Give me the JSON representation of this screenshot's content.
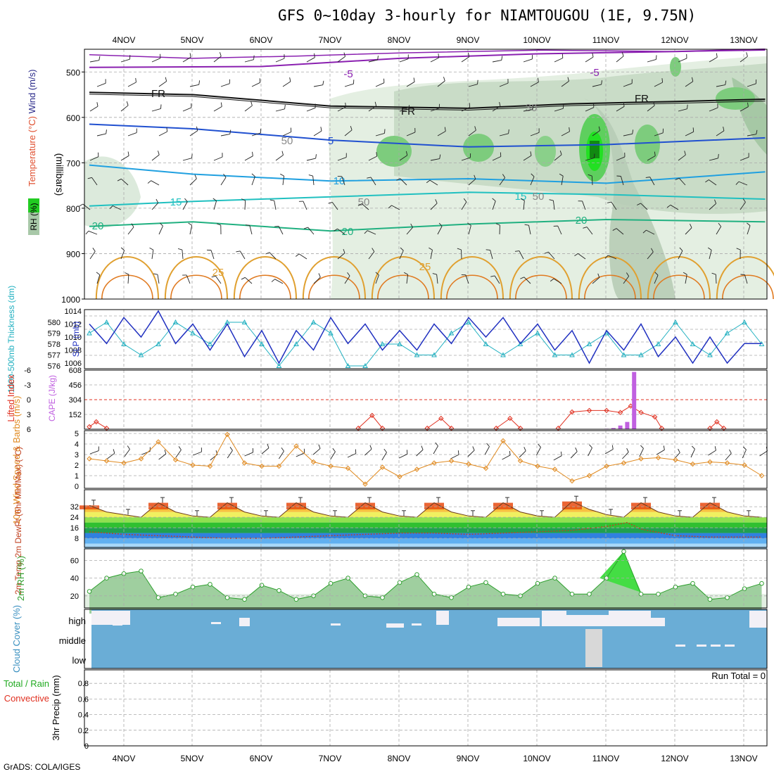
{
  "title": "GFS 0~10day 3-hourly for NIAMTOUGOU (1E, 9.75N)",
  "footer": "GrADS: COLA/IGES",
  "run_total": "Run Total = 0",
  "x_ticks": [
    "4NOV",
    "5NOV",
    "6NOV",
    "7NOV",
    "8NOV",
    "9NOV",
    "10NOV",
    "11NOV",
    "12NOV",
    "13NOV"
  ],
  "colors": {
    "temp_label": "#e05030",
    "wind_label": "#2a2a8a",
    "rh_label": "#22aa22",
    "slp": "#2030c0",
    "thickness": "#20b0c0",
    "cape": "#c060e0",
    "lifted": "#e03020",
    "wind10": "#e08a20",
    "dewpt": "#c04020",
    "rh2m": "#30a030",
    "cloud": "#6aadd6",
    "rain": "#20aa20",
    "conv": "#e03020"
  },
  "chart_data": [
    {
      "type": "heatmap",
      "panel": "pressure-levels",
      "ylabel": "(millibars)",
      "ylabel_wind": "Wind (m/s)",
      "ylabel_temp": "Temperature (°C)",
      "ylabel_rh": "RH (%)",
      "y_ticks": [
        500,
        600,
        700,
        800,
        900,
        1000
      ],
      "ylim": [
        450,
        1000
      ],
      "contour_labels": [
        "-5",
        "-5",
        "FR",
        "FR",
        "FR",
        "5",
        "10",
        "15",
        "15",
        "20",
        "20",
        "20",
        "25",
        "25",
        "50",
        "50",
        "50",
        "30"
      ],
      "isotherms": [
        {
          "name": "-5",
          "x": [
            3.5,
            6,
            8,
            10,
            12,
            13.3
          ],
          "y": [
            490,
            488,
            470,
            460,
            455,
            450
          ]
        },
        {
          "name": "FR",
          "x": [
            3.5,
            5,
            7,
            9,
            10.5,
            12,
            13.3
          ],
          "y": [
            545,
            550,
            575,
            580,
            570,
            565,
            560
          ]
        },
        {
          "name": "5",
          "x": [
            3.5,
            5,
            7,
            9,
            11,
            13.3
          ],
          "y": [
            615,
            625,
            650,
            665,
            660,
            645
          ]
        },
        {
          "name": "10",
          "x": [
            3.5,
            5,
            7,
            9,
            11,
            13.3
          ],
          "y": [
            705,
            725,
            740,
            735,
            745,
            720
          ]
        },
        {
          "name": "15",
          "x": [
            3.5,
            5,
            7,
            9,
            11,
            13.3
          ],
          "y": [
            795,
            785,
            775,
            765,
            770,
            780
          ]
        },
        {
          "name": "20",
          "x": [
            3.5,
            5,
            7,
            9,
            11,
            13.3
          ],
          "y": [
            840,
            830,
            850,
            835,
            825,
            830
          ]
        }
      ]
    },
    {
      "type": "line",
      "panel": "slp-thickness",
      "ylabel_left": "1000-500mb Thickness (dm)",
      "ylabel_right": "SLP (mb)",
      "y_ticks_left": [
        576,
        577,
        578,
        579,
        580
      ],
      "y_ticks_right": [
        1006,
        1008,
        1010,
        1012,
        1014
      ],
      "series": [
        {
          "name": "SLP (mb)",
          "x": [
            3.5,
            3.75,
            4.0,
            4.25,
            4.5,
            4.75,
            5.0,
            5.25,
            5.5,
            5.75,
            6.0,
            6.25,
            6.5,
            6.75,
            7.0,
            7.25,
            7.5,
            7.75,
            8.0,
            8.25,
            8.5,
            8.75,
            9.0,
            9.25,
            9.5,
            9.75,
            10.0,
            10.25,
            10.5,
            10.75,
            11.0,
            11.25,
            11.5,
            11.75,
            12.0,
            12.25,
            12.5,
            12.75,
            13.0,
            13.25
          ],
          "y": [
            1012,
            1009,
            1013,
            1010,
            1014,
            1009,
            1012,
            1008,
            1012,
            1007,
            1011,
            1006,
            1011,
            1008,
            1013,
            1009,
            1012,
            1008,
            1011,
            1008,
            1012,
            1009,
            1013,
            1010,
            1013,
            1009,
            1012,
            1008,
            1011,
            1006,
            1011,
            1008,
            1012,
            1007,
            1010,
            1006,
            1010,
            1006,
            1009,
            1009
          ]
        },
        {
          "name": "Thickness (dm)",
          "x": [
            3.5,
            3.75,
            4.0,
            4.25,
            4.5,
            4.75,
            5.0,
            5.25,
            5.5,
            5.75,
            6.0,
            6.25,
            6.5,
            6.75,
            7.0,
            7.25,
            7.5,
            7.75,
            8.0,
            8.25,
            8.5,
            8.75,
            9.0,
            9.25,
            9.5,
            9.75,
            10.0,
            10.25,
            10.5,
            10.75,
            11.0,
            11.25,
            11.5,
            11.75,
            12.0,
            12.25,
            12.5,
            12.75,
            13.0,
            13.25
          ],
          "y": [
            579,
            580,
            578,
            577,
            578,
            580,
            579,
            578,
            580,
            580,
            578,
            576,
            578,
            580,
            579,
            576,
            576,
            578,
            578,
            577,
            577,
            579,
            580,
            578,
            577,
            578,
            579,
            577,
            577,
            578,
            579,
            577,
            577,
            578,
            580,
            578,
            577,
            579,
            580,
            578
          ]
        }
      ]
    },
    {
      "type": "line",
      "panel": "cape-lifted-index",
      "ylabel_left": "Lifted Index",
      "ylabel_right": "CAPE (J/kg)",
      "y_ticks_left": [
        "-6",
        "-3",
        "0",
        "3",
        "6"
      ],
      "y_ticks_right": [
        152,
        304,
        456,
        608
      ],
      "series": [
        {
          "name": "Lifted Index",
          "x": [
            3.5,
            3.6,
            3.75,
            7.4,
            7.6,
            7.75,
            8.4,
            8.6,
            8.75,
            9.4,
            9.6,
            9.75,
            10.3,
            10.5,
            10.75,
            11.0,
            11.2,
            11.35,
            11.5,
            11.7,
            11.8,
            12.5,
            12.6,
            12.7
          ],
          "y": [
            5.5,
            4.5,
            5.8,
            5.8,
            3.2,
            5.8,
            5.8,
            3.8,
            5.8,
            5.8,
            3.8,
            5.8,
            5.8,
            2.5,
            2.2,
            2.2,
            2.6,
            1.3,
            2.6,
            3.5,
            5.8,
            5.8,
            4.5,
            5.8
          ]
        },
        {
          "name": "CAPE (J/kg)",
          "x": [
            11.0,
            11.1,
            11.2,
            11.3,
            11.4
          ],
          "y": [
            5,
            12,
            38,
            75,
            590
          ]
        }
      ]
    },
    {
      "type": "line",
      "panel": "wind-10m",
      "ylabel": "10m Wind Speed & Barbs (m/s)",
      "y_ticks": [
        0,
        1,
        2,
        3,
        4,
        5
      ],
      "ylim": [
        0,
        5
      ],
      "series": [
        {
          "name": "10m Wind Speed",
          "x": [
            3.5,
            3.75,
            4.0,
            4.25,
            4.5,
            4.75,
            5.0,
            5.25,
            5.5,
            5.75,
            6.0,
            6.25,
            6.5,
            6.75,
            7.0,
            7.25,
            7.5,
            7.75,
            8.0,
            8.25,
            8.5,
            8.75,
            9.0,
            9.25,
            9.5,
            9.75,
            10.0,
            10.25,
            10.5,
            10.75,
            11.0,
            11.25,
            11.5,
            11.75,
            12.0,
            12.25,
            12.5,
            12.75,
            13.0,
            13.25
          ],
          "y": [
            2.6,
            2.4,
            2.2,
            2.6,
            4.2,
            2.5,
            2.0,
            1.9,
            4.9,
            2.2,
            1.9,
            1.9,
            3.8,
            2.3,
            1.9,
            1.7,
            0.2,
            1.8,
            0.9,
            1.6,
            2.2,
            2.4,
            2.1,
            1.7,
            4.3,
            2.4,
            1.9,
            1.6,
            0.5,
            1.0,
            1.9,
            2.2,
            2.6,
            2.7,
            2.5,
            2.1,
            2.3,
            2.2,
            2.0,
            1.0
          ]
        }
      ]
    },
    {
      "type": "area",
      "panel": "temp-2m",
      "ylabel": "2m Temp 2m DewPt (6hr Min/Max) (°C)",
      "y_ticks": [
        8,
        16,
        24,
        32
      ],
      "series": [
        {
          "name": "2m Temp",
          "x": [
            3.5,
            3.75,
            4.0,
            4.25,
            4.5,
            4.75,
            5.0,
            5.25,
            5.5,
            5.75,
            6.0,
            6.25,
            6.5,
            6.75,
            7.0,
            7.25,
            7.5,
            7.75,
            8.0,
            8.25,
            8.5,
            8.75,
            9.0,
            9.25,
            9.5,
            9.75,
            10.0,
            10.25,
            10.5,
            10.75,
            11.0,
            11.25,
            11.5,
            11.75,
            12.0,
            12.25,
            12.5,
            12.75,
            13.0,
            13.25
          ],
          "y": [
            33,
            28,
            26,
            24,
            35,
            28,
            25,
            24,
            35,
            28,
            25,
            24,
            35,
            28,
            25,
            24,
            35,
            28,
            25,
            24,
            35,
            28,
            25,
            24,
            35,
            28,
            25,
            24,
            36,
            30,
            26,
            24,
            35,
            28,
            25,
            24,
            35,
            28,
            25,
            24
          ]
        },
        {
          "name": "2m DewPt",
          "x": [
            3.5,
            4.0,
            4.5,
            5.0,
            5.5,
            6.0,
            6.5,
            7.0,
            7.5,
            8.0,
            8.5,
            9.0,
            9.5,
            10.0,
            10.5,
            11.0,
            11.3,
            11.5,
            12.0,
            12.5,
            13.0,
            13.25
          ],
          "y": [
            13,
            11,
            10,
            9,
            8,
            8,
            9,
            10,
            11,
            12,
            12,
            11,
            12,
            13,
            14,
            17,
            20,
            15,
            10,
            9,
            9,
            9
          ]
        }
      ]
    },
    {
      "type": "area",
      "panel": "rh-2m",
      "ylabel": "2m RH (%)",
      "y_ticks": [
        20,
        40,
        60
      ],
      "series": [
        {
          "name": "2m RH",
          "x": [
            3.5,
            3.75,
            4.0,
            4.25,
            4.5,
            4.75,
            5.0,
            5.25,
            5.5,
            5.75,
            6.0,
            6.25,
            6.5,
            6.75,
            7.0,
            7.25,
            7.5,
            7.75,
            8.0,
            8.25,
            8.5,
            8.75,
            9.0,
            9.25,
            9.5,
            9.75,
            10.0,
            10.25,
            10.5,
            10.75,
            11.0,
            11.25,
            11.5,
            11.75,
            12.0,
            12.25,
            12.5,
            12.75,
            13.0,
            13.25
          ],
          "y": [
            25,
            40,
            45,
            48,
            18,
            22,
            30,
            33,
            18,
            16,
            32,
            26,
            16,
            20,
            34,
            40,
            20,
            18,
            35,
            44,
            22,
            18,
            30,
            35,
            22,
            20,
            34,
            40,
            22,
            22,
            40,
            70,
            22,
            22,
            30,
            34,
            16,
            18,
            28,
            34
          ]
        }
      ]
    },
    {
      "type": "heatmap",
      "panel": "cloud-cover",
      "ylabel": "Cloud Cover (%)",
      "rows": [
        "high",
        "middle",
        "low"
      ]
    },
    {
      "type": "bar",
      "panel": "precip",
      "ylabel": "3hr Precip (mm)",
      "ylabel_left": "Total / Rain",
      "ylabel_left2": "Convective",
      "y_ticks": [
        "0",
        "0.2",
        "0.4",
        "0.6",
        "0.8"
      ],
      "ylim": [
        0,
        1
      ]
    }
  ]
}
